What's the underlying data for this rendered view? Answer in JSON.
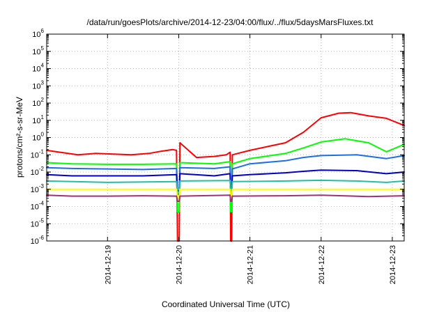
{
  "chart_data": {
    "type": "line",
    "title": "/data/run/goesPlots/archive/2014-12-23/04:00/flux/../flux/5daysMarsFluxes.txt",
    "xlabel": "Coordinated Universal Time (UTC)",
    "ylabel": "protons/cm²-s-sr-MeV",
    "y_scale": "log",
    "ylim": [
      1e-06,
      1000000.0
    ],
    "xlim": [
      "2014-12-18T03:30",
      "2014-12-23T04:00"
    ],
    "grid": true,
    "x_ticks": [
      {
        "label": "2014-12-19",
        "t": "2014-12-19T00:00"
      },
      {
        "label": "2014-12-20",
        "t": "2014-12-20T00:00"
      },
      {
        "label": "2014-12-21",
        "t": "2014-12-21T00:00"
      },
      {
        "label": "2014-12-22",
        "t": "2014-12-22T00:00"
      },
      {
        "label": "2014-12-23",
        "t": "2014-12-23T00:00"
      }
    ],
    "y_ticks": [
      {
        "base": "10",
        "exp": "-6",
        "value": 1e-06
      },
      {
        "base": "10",
        "exp": "-5",
        "value": 1e-05
      },
      {
        "base": "10",
        "exp": "-4",
        "value": 0.0001
      },
      {
        "base": "10",
        "exp": "-3",
        "value": 0.001
      },
      {
        "base": "10",
        "exp": "-2",
        "value": 0.01
      },
      {
        "base": "10",
        "exp": "-1",
        "value": 0.1
      },
      {
        "base": "10",
        "exp": "0",
        "value": 1
      },
      {
        "base": "10",
        "exp": "1",
        "value": 10
      },
      {
        "base": "10",
        "exp": "2",
        "value": 100
      },
      {
        "base": "10",
        "exp": "3",
        "value": 1000
      },
      {
        "base": "10",
        "exp": "4",
        "value": 10000
      },
      {
        "base": "10",
        "exp": "5",
        "value": 100000
      },
      {
        "base": "10",
        "exp": "6",
        "value": 1000000
      }
    ],
    "series": [
      {
        "color": "#ff0000",
        "points": [
          [
            "2014-12-18T03:30",
            0.18
          ],
          [
            "2014-12-18T08:00",
            0.14
          ],
          [
            "2014-12-18T14:00",
            0.1
          ],
          [
            "2014-12-18T20:00",
            0.12
          ],
          [
            "2014-12-19T02:00",
            0.11
          ],
          [
            "2014-12-19T08:00",
            0.1
          ],
          [
            "2014-12-19T14:00",
            0.12
          ],
          [
            "2014-12-19T18:00",
            0.16
          ],
          [
            "2014-12-19T22:00",
            0.2
          ],
          [
            "2014-12-19T23:15",
            0.18
          ],
          [
            "2014-12-19T23:35",
            1e-06
          ],
          [
            "2014-12-20T00:10",
            1e-06
          ],
          [
            "2014-12-20T00:25",
            0.5
          ],
          [
            "2014-12-20T06:00",
            0.07
          ],
          [
            "2014-12-20T12:00",
            0.08
          ],
          [
            "2014-12-20T16:00",
            0.1
          ],
          [
            "2014-12-20T17:20",
            0.14
          ],
          [
            "2014-12-20T17:30",
            1e-06
          ],
          [
            "2014-12-20T17:50",
            1e-06
          ],
          [
            "2014-12-20T18:05",
            0.1
          ],
          [
            "2014-12-21T00:00",
            0.18
          ],
          [
            "2014-12-21T06:00",
            0.3
          ],
          [
            "2014-12-21T12:00",
            0.5
          ],
          [
            "2014-12-21T18:00",
            2.0
          ],
          [
            "2014-12-22T00:00",
            14.0
          ],
          [
            "2014-12-22T06:00",
            26.0
          ],
          [
            "2014-12-22T10:00",
            28.0
          ],
          [
            "2014-12-22T16:00",
            18.0
          ],
          [
            "2014-12-22T22:00",
            13.0
          ],
          [
            "2014-12-23T04:00",
            5.0
          ]
        ]
      },
      {
        "color": "#00ff00",
        "points": [
          [
            "2014-12-18T03:30",
            0.035
          ],
          [
            "2014-12-18T12:00",
            0.03
          ],
          [
            "2014-12-19T00:00",
            0.028
          ],
          [
            "2014-12-19T12:00",
            0.028
          ],
          [
            "2014-12-19T23:15",
            0.03
          ],
          [
            "2014-12-19T23:35",
            5e-05
          ],
          [
            "2014-12-20T00:10",
            5e-05
          ],
          [
            "2014-12-20T00:25",
            0.035
          ],
          [
            "2014-12-20T12:00",
            0.03
          ],
          [
            "2014-12-20T17:20",
            0.04
          ],
          [
            "2014-12-20T17:30",
            5e-05
          ],
          [
            "2014-12-20T17:50",
            5e-05
          ],
          [
            "2014-12-20T18:05",
            0.03
          ],
          [
            "2014-12-21T00:00",
            0.06
          ],
          [
            "2014-12-21T12:00",
            0.12
          ],
          [
            "2014-12-21T18:00",
            0.25
          ],
          [
            "2014-12-22T00:00",
            0.55
          ],
          [
            "2014-12-22T08:00",
            0.85
          ],
          [
            "2014-12-22T16:00",
            0.5
          ],
          [
            "2014-12-22T22:00",
            0.15
          ],
          [
            "2014-12-23T04:00",
            0.4
          ]
        ]
      },
      {
        "color": "#1a6fe8",
        "points": [
          [
            "2014-12-18T03:30",
            0.018
          ],
          [
            "2014-12-18T12:00",
            0.016
          ],
          [
            "2014-12-19T00:00",
            0.015
          ],
          [
            "2014-12-19T12:00",
            0.014
          ],
          [
            "2014-12-19T23:15",
            0.016
          ],
          [
            "2014-12-19T23:35",
            0.0005
          ],
          [
            "2014-12-20T00:10",
            0.0005
          ],
          [
            "2014-12-20T00:25",
            0.018
          ],
          [
            "2014-12-20T12:00",
            0.016
          ],
          [
            "2014-12-20T17:20",
            0.02
          ],
          [
            "2014-12-20T17:30",
            0.0005
          ],
          [
            "2014-12-20T17:50",
            0.0005
          ],
          [
            "2014-12-20T18:05",
            0.015
          ],
          [
            "2014-12-21T00:00",
            0.03
          ],
          [
            "2014-12-21T12:00",
            0.045
          ],
          [
            "2014-12-21T18:00",
            0.07
          ],
          [
            "2014-12-22T00:00",
            0.09
          ],
          [
            "2014-12-22T12:00",
            0.1
          ],
          [
            "2014-12-22T22:00",
            0.06
          ],
          [
            "2014-12-23T04:00",
            0.09
          ]
        ]
      },
      {
        "color": "#0000c8",
        "points": [
          [
            "2014-12-18T03:30",
            0.007
          ],
          [
            "2014-12-18T12:00",
            0.006
          ],
          [
            "2014-12-19T00:00",
            0.006
          ],
          [
            "2014-12-19T12:00",
            0.006
          ],
          [
            "2014-12-19T23:15",
            0.007
          ],
          [
            "2014-12-19T23:35",
            0.0008
          ],
          [
            "2014-12-20T00:10",
            0.0008
          ],
          [
            "2014-12-20T00:25",
            0.008
          ],
          [
            "2014-12-20T12:00",
            0.006
          ],
          [
            "2014-12-20T17:20",
            0.008
          ],
          [
            "2014-12-20T17:30",
            0.0008
          ],
          [
            "2014-12-20T17:50",
            0.0008
          ],
          [
            "2014-12-20T18:05",
            0.006
          ],
          [
            "2014-12-21T00:00",
            0.007
          ],
          [
            "2014-12-21T12:00",
            0.009
          ],
          [
            "2014-12-21T18:00",
            0.011
          ],
          [
            "2014-12-22T00:00",
            0.013
          ],
          [
            "2014-12-22T12:00",
            0.012
          ],
          [
            "2014-12-22T22:00",
            0.008
          ],
          [
            "2014-12-23T04:00",
            0.01
          ]
        ]
      },
      {
        "color": "#20c0a0",
        "points": [
          [
            "2014-12-18T03:30",
            0.003
          ],
          [
            "2014-12-19T00:00",
            0.0025
          ],
          [
            "2014-12-19T23:15",
            0.0028
          ],
          [
            "2014-12-19T23:35",
            0.0006
          ],
          [
            "2014-12-20T00:10",
            0.0006
          ],
          [
            "2014-12-20T00:25",
            0.003
          ],
          [
            "2014-12-20T17:20",
            0.0032
          ],
          [
            "2014-12-20T17:30",
            0.0006
          ],
          [
            "2014-12-20T17:50",
            0.0006
          ],
          [
            "2014-12-20T18:05",
            0.0028
          ],
          [
            "2014-12-21T12:00",
            0.003
          ],
          [
            "2014-12-22T00:00",
            0.0033
          ],
          [
            "2014-12-22T12:00",
            0.003
          ],
          [
            "2014-12-22T22:00",
            0.0025
          ],
          [
            "2014-12-23T04:00",
            0.003
          ]
        ]
      },
      {
        "color": "#ffff00",
        "points": [
          [
            "2014-12-18T03:30",
            0.001
          ],
          [
            "2014-12-19T00:00",
            0.001
          ],
          [
            "2014-12-19T23:15",
            0.001
          ],
          [
            "2014-12-19T23:35",
            0.0003
          ],
          [
            "2014-12-20T00:10",
            0.0003
          ],
          [
            "2014-12-20T00:25",
            0.001
          ],
          [
            "2014-12-20T17:20",
            0.001
          ],
          [
            "2014-12-20T17:30",
            0.0003
          ],
          [
            "2014-12-20T17:50",
            0.0003
          ],
          [
            "2014-12-20T18:05",
            0.001
          ],
          [
            "2014-12-22T00:00",
            0.001
          ],
          [
            "2014-12-23T04:00",
            0.001
          ]
        ]
      },
      {
        "color": "#a03070",
        "points": [
          [
            "2014-12-18T03:30",
            0.00045
          ],
          [
            "2014-12-18T12:00",
            0.0004
          ],
          [
            "2014-12-19T00:00",
            0.0004
          ],
          [
            "2014-12-19T12:00",
            0.00042
          ],
          [
            "2014-12-19T23:15",
            0.0004
          ],
          [
            "2014-12-19T23:35",
            0.0002
          ],
          [
            "2014-12-20T00:10",
            0.0002
          ],
          [
            "2014-12-20T00:25",
            0.0004
          ],
          [
            "2014-12-20T17:20",
            0.00045
          ],
          [
            "2014-12-20T17:30",
            0.0002
          ],
          [
            "2014-12-20T17:50",
            0.0002
          ],
          [
            "2014-12-20T18:05",
            0.0004
          ],
          [
            "2014-12-21T12:00",
            0.00042
          ],
          [
            "2014-12-22T00:00",
            0.00045
          ],
          [
            "2014-12-22T16:00",
            0.00038
          ],
          [
            "2014-12-23T04:00",
            0.00042
          ]
        ]
      }
    ]
  }
}
